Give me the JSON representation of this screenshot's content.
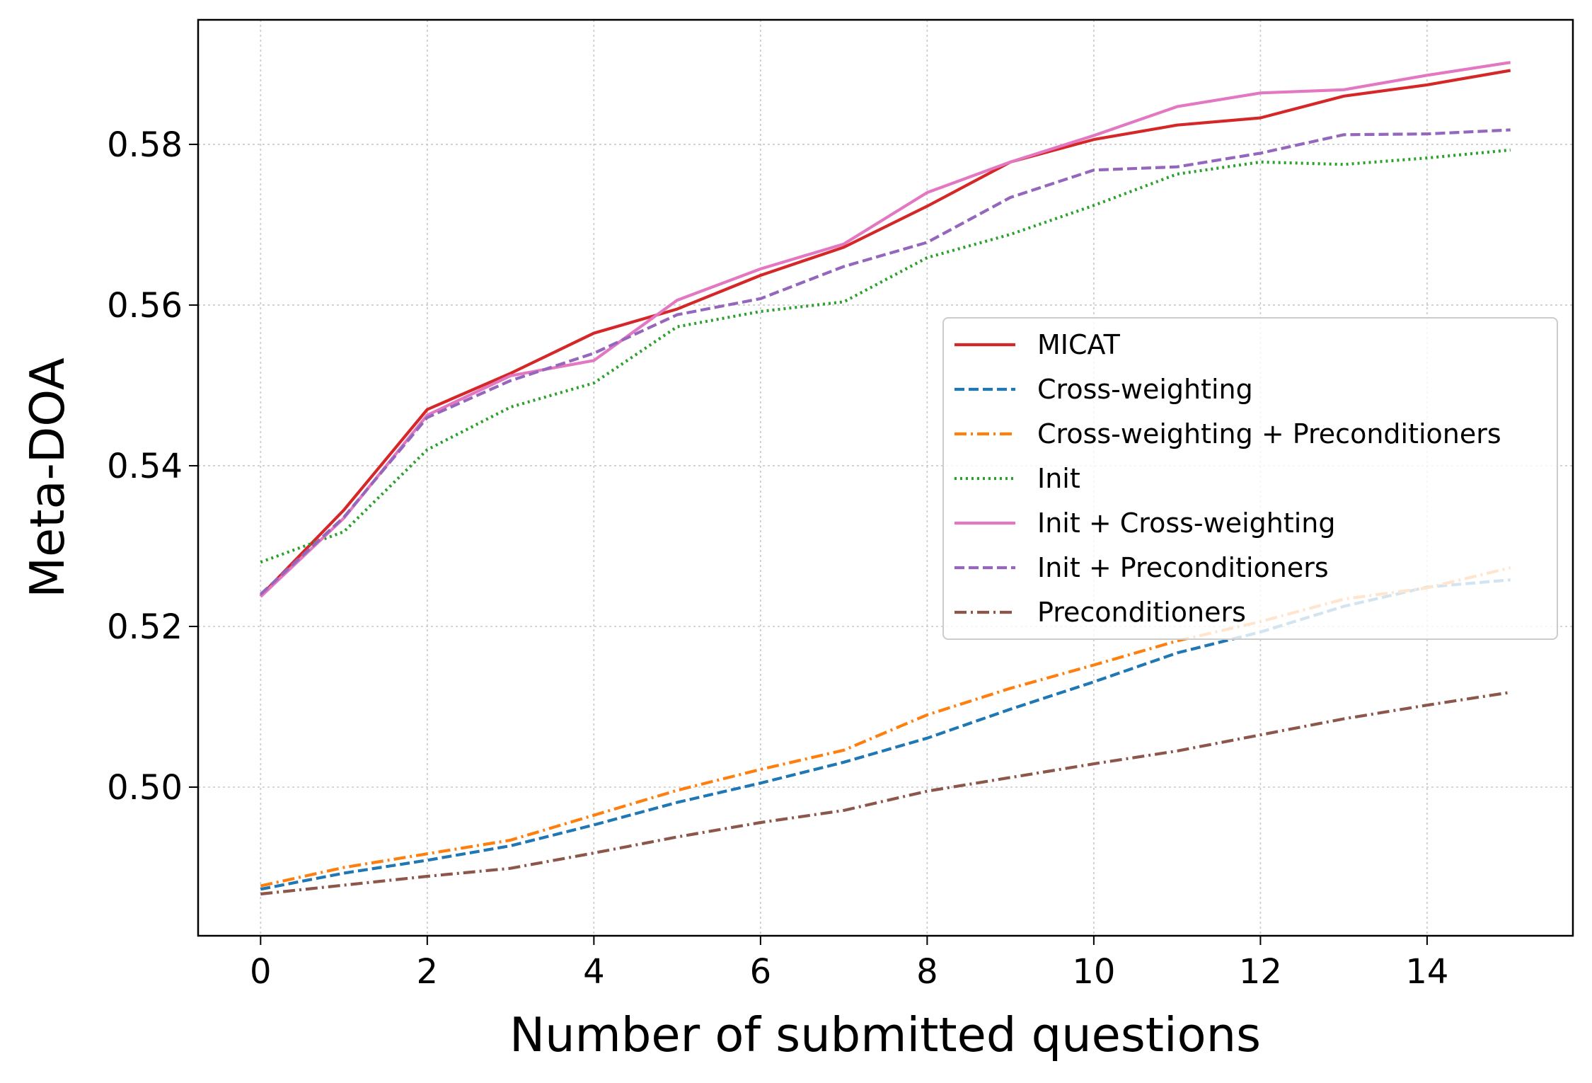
{
  "chart_data": {
    "type": "line",
    "title": "",
    "xlabel": "Number of submitted questions",
    "ylabel": "Meta-DOA",
    "x": [
      0,
      1,
      2,
      3,
      4,
      5,
      6,
      7,
      8,
      9,
      10,
      11,
      12,
      13,
      14,
      15
    ],
    "xlim": [
      -0.75,
      15.75
    ],
    "ylim": [
      0.4815,
      0.5955
    ],
    "x_ticks": [
      0,
      2,
      4,
      6,
      8,
      10,
      12,
      14
    ],
    "y_ticks": [
      0.5,
      0.52,
      0.54,
      0.56,
      0.58
    ],
    "x_tick_labels": [
      "0",
      "2",
      "4",
      "6",
      "8",
      "10",
      "12",
      "14"
    ],
    "y_tick_labels": [
      "0.50",
      "0.52",
      "0.54",
      "0.56",
      "0.58"
    ],
    "grid": true,
    "legend_position": "center-right",
    "series": [
      {
        "name": "MICAT",
        "color": "#d62728",
        "style": "solid",
        "values": [
          0.5238,
          0.5345,
          0.547,
          0.5515,
          0.5565,
          0.5595,
          0.5637,
          0.5672,
          0.5723,
          0.5778,
          0.5806,
          0.5824,
          0.5833,
          0.586,
          0.5874,
          0.5892
        ]
      },
      {
        "name": "Cross-weighting",
        "color": "#1f77b4",
        "style": "dashed",
        "values": [
          0.4873,
          0.4893,
          0.4909,
          0.4927,
          0.4953,
          0.4981,
          0.5005,
          0.5031,
          0.5061,
          0.5097,
          0.5131,
          0.5167,
          0.5193,
          0.5225,
          0.5249,
          0.5258
        ]
      },
      {
        "name": "Cross-weighting + Preconditioners",
        "color": "#ff7f0e",
        "style": "dashdot",
        "values": [
          0.4877,
          0.49,
          0.4917,
          0.4934,
          0.4965,
          0.4996,
          0.5022,
          0.5046,
          0.509,
          0.5123,
          0.5152,
          0.5182,
          0.5206,
          0.5234,
          0.5248,
          0.5273
        ]
      },
      {
        "name": "Init",
        "color": "#2ca02c",
        "style": "dotted",
        "values": [
          0.528,
          0.5318,
          0.542,
          0.5473,
          0.5503,
          0.5573,
          0.5592,
          0.5604,
          0.5659,
          0.5688,
          0.5724,
          0.5763,
          0.5778,
          0.5775,
          0.5783,
          0.5793
        ]
      },
      {
        "name": "Init + Cross-weighting",
        "color": "#e377c2",
        "style": "solid",
        "values": [
          0.5237,
          0.5335,
          0.5463,
          0.5512,
          0.5531,
          0.5606,
          0.5645,
          0.5676,
          0.574,
          0.5778,
          0.5811,
          0.5847,
          0.5864,
          0.5868,
          0.5886,
          0.5902
        ]
      },
      {
        "name": "Init + Preconditioners",
        "color": "#9467bd",
        "style": "dashed",
        "values": [
          0.524,
          0.5336,
          0.546,
          0.5506,
          0.554,
          0.5588,
          0.5608,
          0.5648,
          0.5678,
          0.5734,
          0.5768,
          0.5772,
          0.5789,
          0.5812,
          0.5813,
          0.5818
        ]
      },
      {
        "name": "Preconditioners",
        "color": "#8c564b",
        "style": "dashdot",
        "values": [
          0.4867,
          0.4878,
          0.4889,
          0.4899,
          0.4918,
          0.4938,
          0.4956,
          0.4971,
          0.4995,
          0.5012,
          0.5029,
          0.5045,
          0.5065,
          0.5085,
          0.5102,
          0.5118
        ]
      }
    ]
  }
}
